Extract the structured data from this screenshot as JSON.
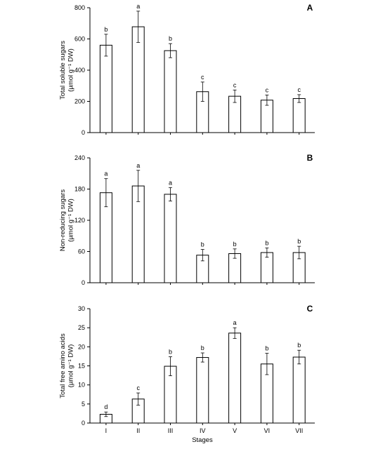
{
  "chart_data": [
    {
      "type": "bar",
      "panel_label": "A",
      "ylabel_line1": "Total soluble sugars",
      "ylabel_line2": "(µmol g⁻¹ DW)",
      "ylim": [
        0,
        800
      ],
      "yticks": [
        0,
        200,
        400,
        600,
        800
      ],
      "categories": [
        "I",
        "II",
        "III",
        "IV",
        "V",
        "VI",
        "VII"
      ],
      "values": [
        560,
        678,
        525,
        262,
        233,
        208,
        218
      ],
      "errors": [
        70,
        100,
        45,
        62,
        40,
        33,
        25
      ],
      "letters": [
        "b",
        "a",
        "b",
        "c",
        "c",
        "c",
        "c"
      ],
      "grid": false
    },
    {
      "type": "bar",
      "panel_label": "B",
      "ylabel_line1": "Non-reducing sugars",
      "ylabel_line2": "(µmol g⁻¹ DW)",
      "ylim": [
        0,
        240
      ],
      "yticks": [
        0,
        60,
        120,
        180,
        240
      ],
      "categories": [
        "I",
        "II",
        "III",
        "IV",
        "V",
        "VI",
        "VII"
      ],
      "values": [
        173,
        186,
        170,
        53,
        56,
        58,
        58
      ],
      "errors": [
        27,
        30,
        13,
        11,
        9,
        9,
        12
      ],
      "letters": [
        "a",
        "a",
        "a",
        "b",
        "b",
        "b",
        "b"
      ],
      "grid": false
    },
    {
      "type": "bar",
      "panel_label": "C",
      "ylabel_line1": "Total free amino acids",
      "ylabel_line2": "(µmol g⁻¹ DW)",
      "ylim": [
        0,
        30
      ],
      "yticks": [
        0,
        5,
        10,
        15,
        20,
        25,
        30
      ],
      "categories": [
        "I",
        "II",
        "III",
        "IV",
        "V",
        "VI",
        "VII"
      ],
      "values": [
        2.3,
        6.3,
        14.9,
        17.2,
        23.6,
        15.5,
        17.3
      ],
      "errors": [
        0.6,
        1.6,
        2.5,
        1.2,
        1.4,
        2.8,
        1.8
      ],
      "letters": [
        "d",
        "c",
        "b",
        "b",
        "a",
        "b",
        "b"
      ],
      "xlabel": "Stages",
      "grid": false
    }
  ]
}
